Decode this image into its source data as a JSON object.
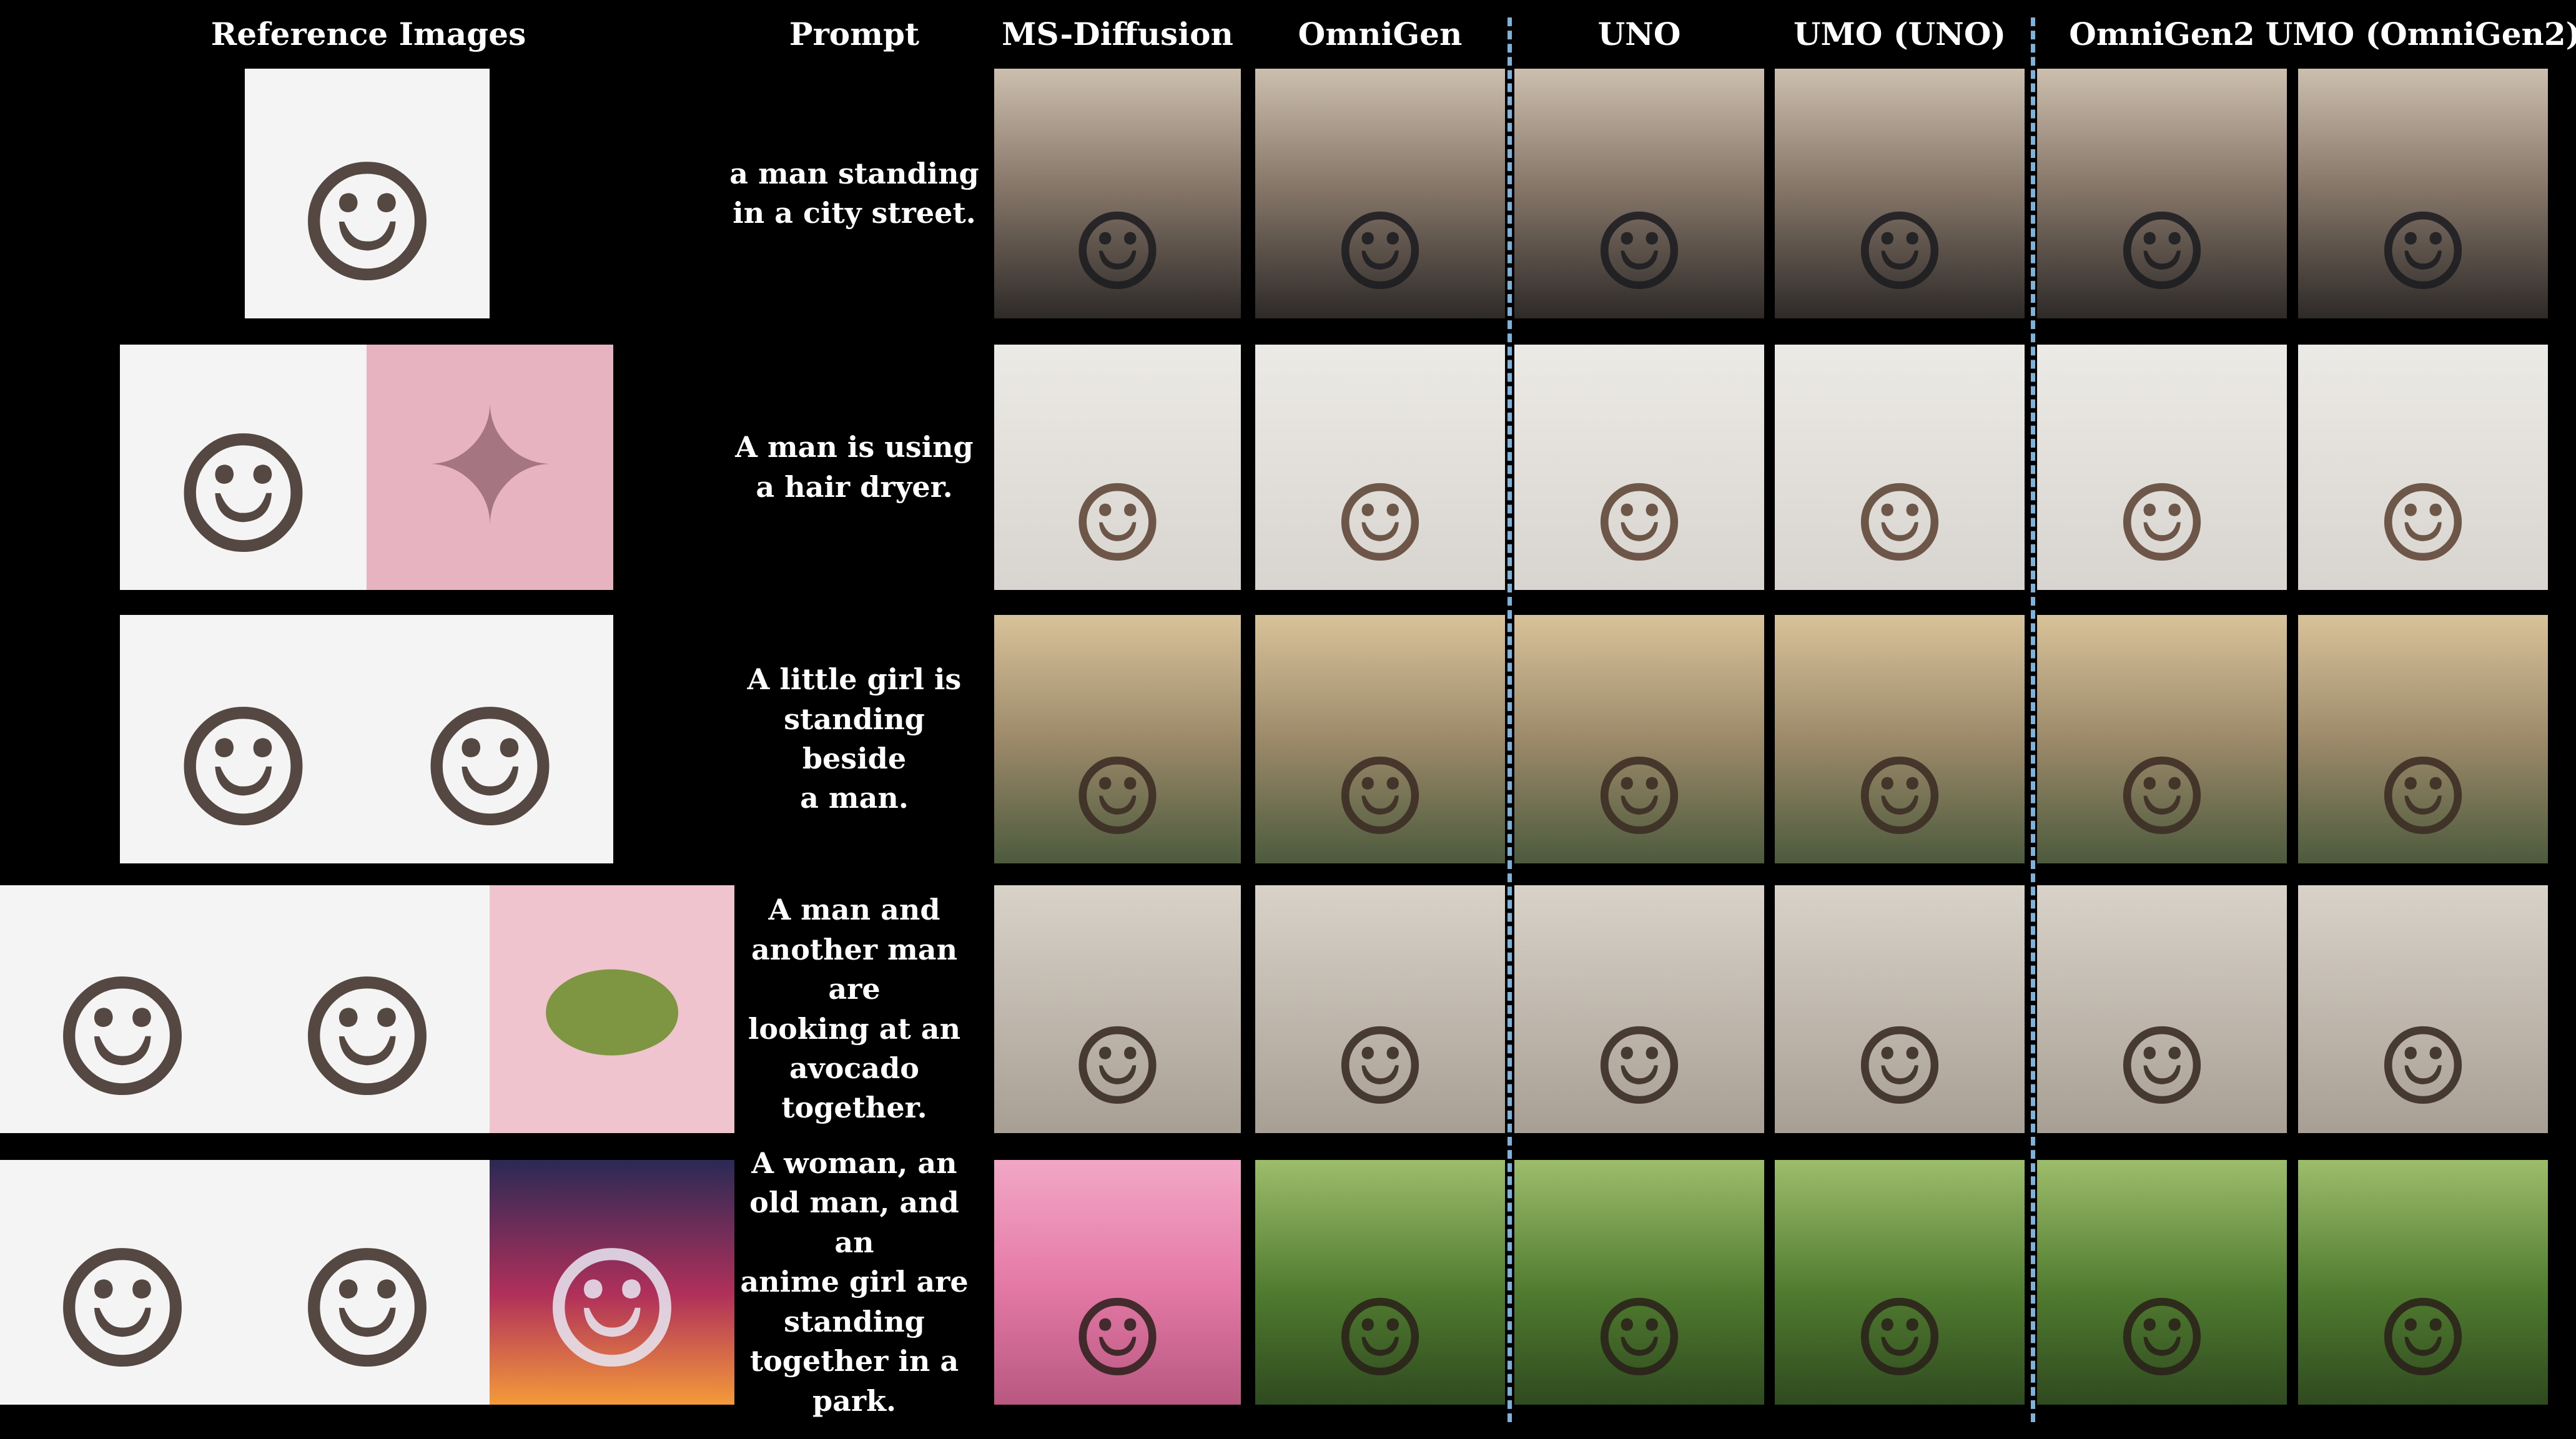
{
  "headers": {
    "reference": "Reference Images",
    "prompt": "Prompt",
    "ms_diffusion": "MS-Diffusion",
    "omnigen": "OmniGen",
    "uno": "UNO",
    "umo_uno": "UMO (UNO)",
    "omnigen2": "OmniGen2",
    "umo_omnigen2": "UMO (OmniGen2)"
  },
  "rows": [
    {
      "prompt_lines": [
        "a man standing",
        "in a city street."
      ],
      "references": [
        {
          "icon": "man-portrait-icon",
          "glyph": "☺"
        }
      ],
      "scene_icon": "man-in-street-icon"
    },
    {
      "prompt_lines": [
        "A man is using",
        "a hair dryer."
      ],
      "references": [
        {
          "icon": "man-portrait-icon",
          "glyph": "☺"
        },
        {
          "icon": "hair-dryer-icon",
          "glyph": "✦"
        }
      ],
      "scene_icon": "man-with-hair-dryer-icon"
    },
    {
      "prompt_lines": [
        "A little girl is",
        "standing beside",
        "a man."
      ],
      "references": [
        {
          "icon": "girl-portrait-icon",
          "glyph": "☺"
        },
        {
          "icon": "man-with-glasses-portrait-icon",
          "glyph": "☺"
        }
      ],
      "scene_icon": "girl-and-man-icon"
    },
    {
      "prompt_lines": [
        "A man and",
        "another man are",
        "looking at an",
        "avocado",
        "together."
      ],
      "references": [
        {
          "icon": "man-portrait-icon",
          "glyph": "☺"
        },
        {
          "icon": "man-portrait-icon",
          "glyph": "☺"
        },
        {
          "icon": "avocado-icon",
          "glyph": "⬬"
        }
      ],
      "scene_icon": "two-men-with-avocado-icon"
    },
    {
      "prompt_lines": [
        "A woman, an",
        "old man, and an",
        "anime girl are",
        "standing",
        "together in a",
        "park."
      ],
      "references": [
        {
          "icon": "woman-portrait-icon",
          "glyph": "☺"
        },
        {
          "icon": "old-man-portrait-icon",
          "glyph": "☺"
        },
        {
          "icon": "anime-girl-portrait-icon",
          "glyph": "☺"
        }
      ],
      "scene_icon": "group-in-park-icon"
    }
  ],
  "colors": {
    "background": "#000000",
    "text": "#ffffff",
    "separator": "#7fb2d8"
  }
}
